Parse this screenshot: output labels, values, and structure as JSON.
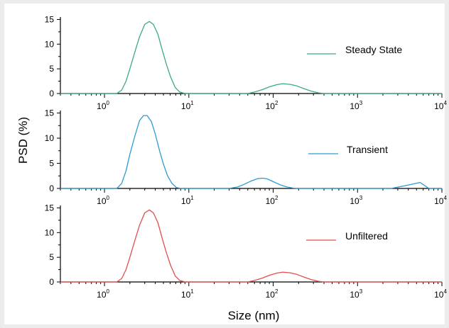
{
  "chart_data": {
    "type": "line",
    "ylabel": "PSD (%)",
    "xlabel": "Size (nm)",
    "xscale": "log",
    "xlim": [
      0.3,
      10000
    ],
    "ylim": [
      0,
      15.5
    ],
    "x_ticks": [
      {
        "value": 1,
        "base": "10",
        "exp": "0"
      },
      {
        "value": 10,
        "base": "10",
        "exp": "1"
      },
      {
        "value": 100,
        "base": "10",
        "exp": "2"
      },
      {
        "value": 1000,
        "base": "10",
        "exp": "3"
      },
      {
        "value": 10000,
        "base": "10",
        "exp": "4"
      }
    ],
    "y_ticks": [
      "0",
      "5",
      "10",
      "15"
    ],
    "legend_location": "right",
    "panels": [
      {
        "name": "steady",
        "color": "#3aaa85",
        "series": [
          {
            "name": "Steady State",
            "color": "#3aaa85",
            "x": [
              0.3,
              1.4,
              1.6,
              1.8,
              2.0,
              2.3,
              2.6,
              3.0,
              3.4,
              3.8,
              4.3,
              4.8,
              5.4,
              6.1,
              6.9,
              7.8,
              9,
              50,
              60,
              75,
              90,
              110,
              130,
              160,
              190,
              230,
              280,
              340,
              400,
              10000
            ],
            "y": [
              0,
              0,
              0.7,
              2.5,
              5.0,
              8.5,
              11.5,
              14.0,
              14.6,
              14.0,
              12.0,
              9.0,
              6.0,
              3.3,
              1.2,
              0.3,
              0,
              0,
              0.3,
              0.8,
              1.35,
              1.8,
              2.0,
              1.85,
              1.55,
              1.0,
              0.5,
              0.15,
              0,
              0
            ]
          }
        ]
      },
      {
        "name": "transient",
        "color": "#2e9ad3",
        "series": [
          {
            "name": "Transient",
            "color": "#2e9ad3",
            "x": [
              0.3,
              1.4,
              1.6,
              1.8,
              2.0,
              2.3,
              2.6,
              2.9,
              3.2,
              3.6,
              4.0,
              4.5,
              5.0,
              5.6,
              6.3,
              7.1,
              8,
              30,
              38,
              45,
              55,
              65,
              75,
              85,
              100,
              120,
              145,
              175,
              200,
              2500,
              3000,
              3800,
              4600,
              5500,
              6200,
              7000,
              10000
            ],
            "y": [
              0,
              0,
              1.0,
              3.5,
              6.8,
              10.5,
              13.5,
              14.5,
              14.5,
              13.3,
              10.8,
              7.5,
              4.8,
              2.5,
              1.0,
              0.2,
              0,
              0,
              0.3,
              0.8,
              1.5,
              1.95,
              2.05,
              1.9,
              1.35,
              0.75,
              0.3,
              0.05,
              0,
              0,
              0.25,
              0.6,
              0.9,
              1.2,
              0.6,
              0,
              0
            ]
          }
        ]
      },
      {
        "name": "unfiltered",
        "color": "#e34d4d",
        "series": [
          {
            "name": "Unfiltered",
            "color": "#e34d4d",
            "x": [
              0.3,
              1.4,
              1.6,
              1.8,
              2.0,
              2.3,
              2.6,
              3.0,
              3.4,
              3.8,
              4.3,
              4.8,
              5.4,
              6.1,
              6.9,
              7.8,
              9,
              50,
              60,
              75,
              90,
              110,
              130,
              160,
              190,
              230,
              280,
              340,
              400,
              10000
            ],
            "y": [
              0,
              0,
              0.7,
              2.5,
              5.0,
              8.5,
              11.5,
              14.0,
              14.6,
              14.0,
              12.0,
              9.0,
              6.0,
              3.3,
              1.2,
              0.3,
              0,
              0,
              0.3,
              0.8,
              1.35,
              1.8,
              2.0,
              1.85,
              1.55,
              1.0,
              0.5,
              0.15,
              0,
              0
            ]
          }
        ]
      }
    ]
  }
}
